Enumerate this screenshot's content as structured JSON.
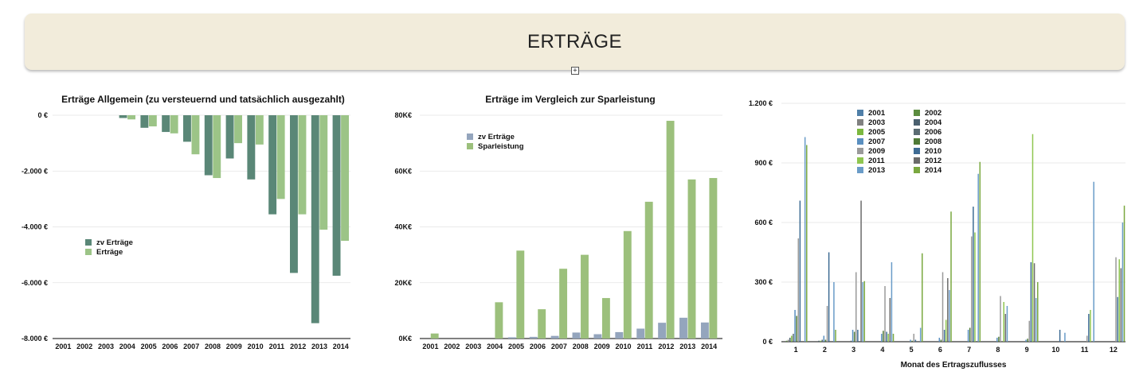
{
  "header": {
    "title": "ERTRÄGE",
    "expand_icon": "expand-icon"
  },
  "chart_data": [
    {
      "type": "bar",
      "title": "Erträge Allgemein (zu versteuernd und tatsächlich ausgezahlt)",
      "categories": [
        "2001",
        "2002",
        "2003",
        "2004",
        "2005",
        "2006",
        "2007",
        "2008",
        "2009",
        "2010",
        "2011",
        "2012",
        "2013",
        "2014"
      ],
      "ylim": [
        -8000,
        0
      ],
      "yticks": [
        0,
        -2000,
        -4000,
        -6000,
        -8000
      ],
      "ytick_labels": [
        "0 €",
        "-2.000 €",
        "-4.000 €",
        "-6.000 €",
        "-8.000 €"
      ],
      "series": [
        {
          "name": "zv Erträge",
          "color": "#5a8777",
          "values": [
            0,
            0,
            0,
            -100,
            -450,
            -600,
            -950,
            -2150,
            -1550,
            -2300,
            -3550,
            -5650,
            -7450,
            -5750
          ]
        },
        {
          "name": "Erträge",
          "color": "#9cc487",
          "values": [
            0,
            0,
            0,
            -150,
            -400,
            -650,
            -1400,
            -2250,
            -1000,
            -1050,
            -3000,
            -3550,
            -4100,
            -4500
          ]
        }
      ],
      "legend": "middle-left"
    },
    {
      "type": "bar",
      "title": "Erträge im Vergleich zur Sparleistung",
      "categories": [
        "2001",
        "2002",
        "2003",
        "2004",
        "2005",
        "2006",
        "2007",
        "2008",
        "2009",
        "2010",
        "2011",
        "2012",
        "2013",
        "2014"
      ],
      "ylim": [
        0,
        80000
      ],
      "yticks": [
        0,
        20000,
        40000,
        60000,
        80000
      ],
      "ytick_labels": [
        "0K€",
        "20K€",
        "40K€",
        "60K€",
        "80K€"
      ],
      "series": [
        {
          "name": "zv Erträge",
          "color": "#94a5bd",
          "values": [
            0,
            0,
            0,
            0,
            450,
            600,
            950,
            2150,
            1550,
            2300,
            3550,
            5650,
            7450,
            5750
          ]
        },
        {
          "name": "Sparleistung",
          "color": "#9cc07c",
          "values": [
            1800,
            0,
            0,
            13000,
            31500,
            10500,
            25000,
            30000,
            14500,
            38500,
            49000,
            78000,
            57000,
            57500
          ]
        }
      ],
      "legend": "top-left"
    },
    {
      "type": "bar",
      "title": "",
      "xlabel": "Monat des Ertragszuflusses",
      "categories": [
        "1",
        "2",
        "3",
        "4",
        "5",
        "6",
        "7",
        "8",
        "9",
        "10",
        "11",
        "12"
      ],
      "ylim": [
        0,
        1200
      ],
      "yticks": [
        0,
        300,
        600,
        900,
        1200
      ],
      "ytick_labels": [
        "0 €",
        "300 €",
        "600 €",
        "900 €",
        "1.200 €"
      ],
      "series": [
        {
          "name": "2001",
          "color": "#4f7fa8",
          "values": [
            0,
            0,
            0,
            0,
            0,
            0,
            0,
            0,
            0,
            0,
            0,
            0
          ]
        },
        {
          "name": "2002",
          "color": "#5b8c3e",
          "values": [
            5,
            0,
            0,
            0,
            0,
            0,
            0,
            0,
            0,
            0,
            0,
            0
          ]
        },
        {
          "name": "2003",
          "color": "#808080",
          "values": [
            10,
            0,
            0,
            0,
            0,
            0,
            0,
            0,
            0,
            0,
            0,
            0
          ]
        },
        {
          "name": "2004",
          "color": "#4a5f6e",
          "values": [
            20,
            5,
            0,
            0,
            0,
            0,
            0,
            0,
            0,
            0,
            0,
            0
          ]
        },
        {
          "name": "2005",
          "color": "#7cb83f",
          "values": [
            30,
            5,
            0,
            0,
            0,
            0,
            0,
            0,
            0,
            0,
            0,
            0
          ]
        },
        {
          "name": "2006",
          "color": "#5a6b72",
          "values": [
            40,
            10,
            5,
            0,
            0,
            0,
            0,
            0,
            0,
            0,
            0,
            0
          ]
        },
        {
          "name": "2007",
          "color": "#5a8fc0",
          "values": [
            160,
            30,
            60,
            40,
            10,
            20,
            60,
            20,
            10,
            0,
            0,
            0
          ]
        },
        {
          "name": "2008",
          "color": "#4f7a36",
          "values": [
            130,
            10,
            50,
            55,
            5,
            10,
            70,
            25,
            15,
            0,
            0,
            0
          ]
        },
        {
          "name": "2009",
          "color": "#9a9a9a",
          "values": [
            520,
            180,
            350,
            280,
            40,
            350,
            530,
            230,
            105,
            0,
            30,
            425
          ]
        },
        {
          "name": "2010",
          "color": "#3f6c94",
          "values": [
            710,
            450,
            60,
            50,
            10,
            60,
            680,
            0,
            400,
            60,
            140,
            225
          ]
        },
        {
          "name": "2011",
          "color": "#8fc650",
          "values": [
            0,
            0,
            0,
            40,
            0,
            110,
            550,
            200,
            1045,
            0,
            160,
            415
          ]
        },
        {
          "name": "2012",
          "color": "#6b6b6b",
          "values": [
            0,
            0,
            710,
            220,
            0,
            320,
            0,
            140,
            395,
            0,
            0,
            370
          ]
        },
        {
          "name": "2013",
          "color": "#6a9cc8",
          "values": [
            1030,
            300,
            300,
            400,
            70,
            260,
            845,
            180,
            220,
            45,
            805,
            600
          ]
        },
        {
          "name": "2014",
          "color": "#7aa83f",
          "values": [
            990,
            60,
            305,
            40,
            445,
            655,
            905,
            0,
            300,
            0,
            0,
            685
          ]
        }
      ],
      "legend": "top-left"
    }
  ]
}
